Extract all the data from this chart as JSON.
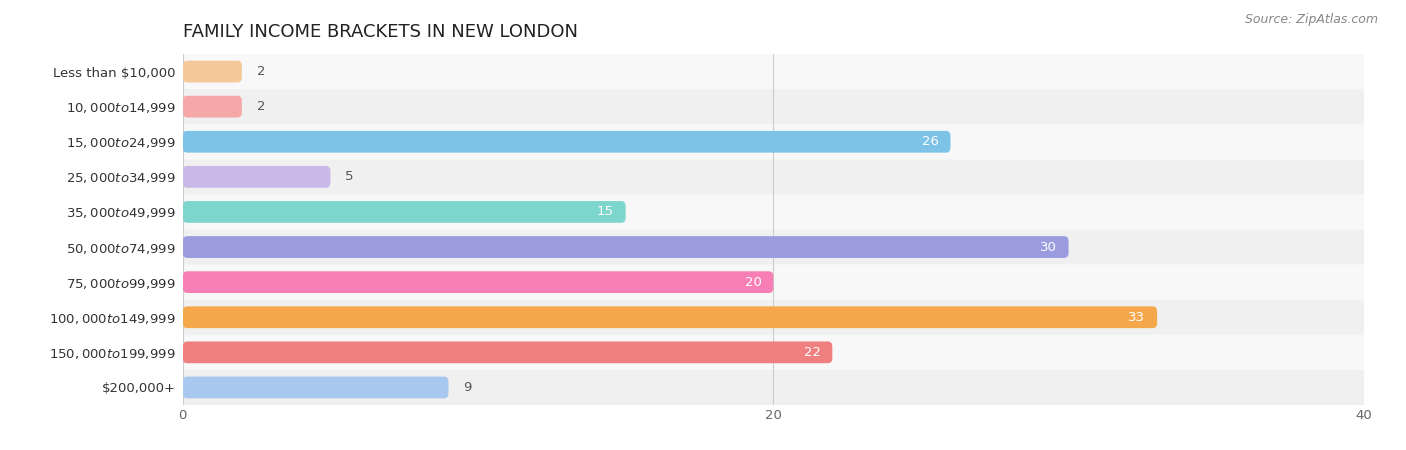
{
  "title": "FAMILY INCOME BRACKETS IN NEW LONDON",
  "source": "Source: ZipAtlas.com",
  "categories": [
    "Less than $10,000",
    "$10,000 to $14,999",
    "$15,000 to $24,999",
    "$25,000 to $34,999",
    "$35,000 to $49,999",
    "$50,000 to $74,999",
    "$75,000 to $99,999",
    "$100,000 to $149,999",
    "$150,000 to $199,999",
    "$200,000+"
  ],
  "values": [
    2,
    2,
    26,
    5,
    15,
    30,
    20,
    33,
    22,
    9
  ],
  "bar_colors": [
    "#F5C799",
    "#F5A8A8",
    "#7DC3E8",
    "#C9B8E8",
    "#7DD6CC",
    "#9B9BE0",
    "#F77FB5",
    "#F5A84A",
    "#F08080",
    "#A8C8F0"
  ],
  "row_colors": [
    "#f0f0f0",
    "#f8f8f8"
  ],
  "xlim": [
    0,
    40
  ],
  "xticks": [
    0,
    20,
    40
  ],
  "title_fontsize": 13,
  "label_fontsize": 9.5,
  "value_fontsize": 9.5
}
